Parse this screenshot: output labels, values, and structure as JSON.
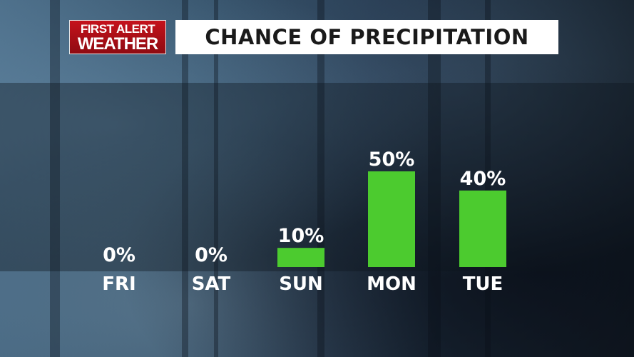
{
  "branding": {
    "logo_line1": "FIRST ALERT",
    "logo_line2": "WEATHER"
  },
  "title": "CHANCE OF PRECIPITATION",
  "colors": {
    "bar": "#4ccb2f",
    "logo_red": "#c5121c",
    "title_bg": "#ffffff",
    "text": "#ffffff"
  },
  "chart_data": {
    "type": "bar",
    "title": "CHANCE OF PRECIPITATION",
    "categories": [
      "FRI",
      "SAT",
      "SUN",
      "MON",
      "TUE"
    ],
    "values": [
      0,
      0,
      10,
      50,
      40
    ],
    "value_labels": [
      "0%",
      "0%",
      "10%",
      "50%",
      "40%"
    ],
    "unit": "%",
    "ylim": [
      0,
      50
    ],
    "grid": false,
    "legend": "none"
  }
}
